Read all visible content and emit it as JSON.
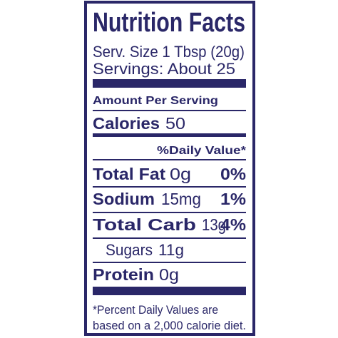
{
  "header": {
    "title": "Nutrition Facts",
    "serving_size": "Serv. Size 1 Tbsp (20g)",
    "servings": "Servings: About 25"
  },
  "amount_per_serving": "Amount Per Serving",
  "calories": {
    "label": "Calories",
    "value": "50"
  },
  "daily_value_header": "%Daily Value*",
  "nutrients": [
    {
      "name": "Total Fat",
      "amount": "0g",
      "percent": "0%"
    },
    {
      "name": "Sodium",
      "amount": "15mg",
      "percent": "1%"
    },
    {
      "name": "Total Carb",
      "amount": "13g",
      "percent": "4%"
    }
  ],
  "sub_nutrient": {
    "name": "Sugars",
    "amount": "11g"
  },
  "protein": {
    "name": "Protein",
    "amount": "0g"
  },
  "footnote": [
    "*Percent Daily Values are",
    "based on a 2,000 calorie diet."
  ]
}
